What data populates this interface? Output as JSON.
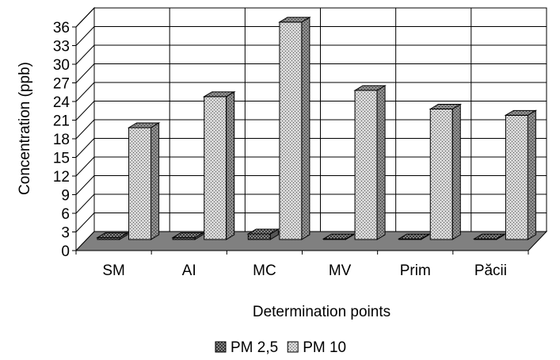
{
  "chart_data": {
    "type": "bar",
    "title": "",
    "xlabel": "Determination points",
    "ylabel": "Concentration (ppb)",
    "ylim": [
      0,
      36
    ],
    "yticks": [
      0,
      3,
      6,
      9,
      12,
      15,
      18,
      21,
      24,
      27,
      30,
      33,
      36
    ],
    "grid": true,
    "legend_position": "bottom",
    "three_d": true,
    "categories": [
      "SM",
      "AI",
      "MC",
      "MV",
      "Prim",
      "Păcii"
    ],
    "series": [
      {
        "name": "PM 2,5",
        "values": [
          0.3,
          0.3,
          0.9,
          0.1,
          0.1,
          0.1
        ],
        "color": "#808080"
      },
      {
        "name": "PM 10",
        "values": [
          18,
          23,
          35,
          24,
          21,
          20
        ],
        "color": "#c0c0c0"
      }
    ]
  }
}
